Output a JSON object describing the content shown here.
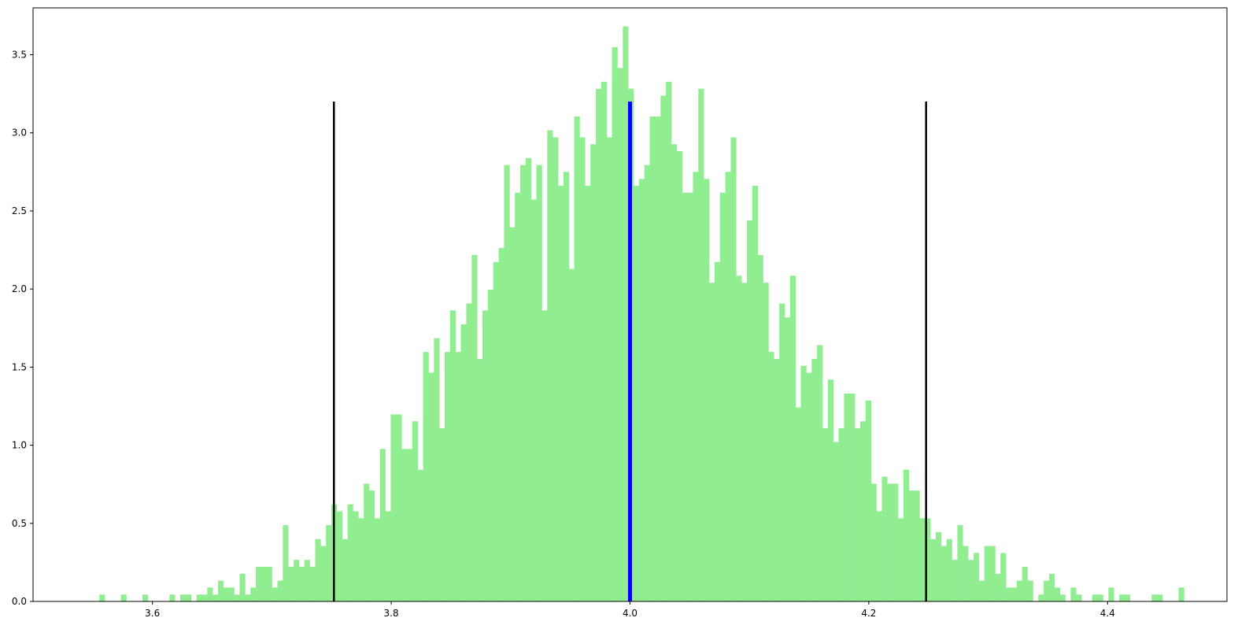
{
  "chart_data": {
    "type": "bar",
    "subtype": "histogram",
    "title": "",
    "xlabel": "",
    "ylabel": "",
    "xlim": [
      3.5,
      4.5
    ],
    "ylim": [
      0,
      3.8
    ],
    "grid": false,
    "xticks": [
      3.6,
      3.8,
      4.0,
      4.2,
      4.4
    ],
    "xtick_labels": [
      "3.6",
      "3.8",
      "4.0",
      "4.2",
      "4.4"
    ],
    "yticks": [
      0,
      0.5,
      1.0,
      1.5,
      2.0,
      2.5,
      3.0,
      3.5
    ],
    "ytick_labels": [
      "0.0",
      "0.5",
      "1.0",
      "1.5",
      "2.0",
      "2.5",
      "3.0",
      "3.5"
    ],
    "bar_color": "#90ee90",
    "bin_width": 0.00452,
    "bins_start": 3.5555,
    "values": [
      0.044,
      0,
      0,
      0,
      0.044,
      0,
      0,
      0,
      0.044,
      0,
      0,
      0,
      0,
      0.044,
      0,
      0.044,
      0.044,
      0,
      0.044,
      0.044,
      0.089,
      0.044,
      0.133,
      0.089,
      0.089,
      0.044,
      0.177,
      0.044,
      0.089,
      0.222,
      0.222,
      0.222,
      0.089,
      0.133,
      0.488,
      0.222,
      0.266,
      0.222,
      0.266,
      0.222,
      0.399,
      0.355,
      0.488,
      0.621,
      0.577,
      0.399,
      0.621,
      0.577,
      0.532,
      0.754,
      0.71,
      0.532,
      0.976,
      0.577,
      1.197,
      1.197,
      0.976,
      0.976,
      1.153,
      0.843,
      1.597,
      1.464,
      1.685,
      1.109,
      1.597,
      1.863,
      1.597,
      1.774,
      1.907,
      2.218,
      1.552,
      1.863,
      1.996,
      2.173,
      2.262,
      2.794,
      2.395,
      2.617,
      2.794,
      2.838,
      2.573,
      2.794,
      1.863,
      3.016,
      2.971,
      2.661,
      2.75,
      2.129,
      3.105,
      2.971,
      2.661,
      2.927,
      3.282,
      3.327,
      2.971,
      3.548,
      3.415,
      3.681,
      3.282,
      2.661,
      2.705,
      2.794,
      3.105,
      3.105,
      3.238,
      3.327,
      2.927,
      2.883,
      2.617,
      2.617,
      2.75,
      3.282,
      2.705,
      2.04,
      2.173,
      2.617,
      2.75,
      2.971,
      2.085,
      2.04,
      2.44,
      2.661,
      2.218,
      2.04,
      1.597,
      1.552,
      1.907,
      1.818,
      2.085,
      1.242,
      1.508,
      1.464,
      1.552,
      1.641,
      1.109,
      1.42,
      1.02,
      1.109,
      1.331,
      1.331,
      1.109,
      1.153,
      1.286,
      0.754,
      0.577,
      0.799,
      0.754,
      0.754,
      0.532,
      0.843,
      0.71,
      0.71,
      0.532,
      0.532,
      0.399,
      0.444,
      0.355,
      0.399,
      0.266,
      0.488,
      0.355,
      0.266,
      0.31,
      0.133,
      0.355,
      0.355,
      0.177,
      0.31,
      0.089,
      0.089,
      0.133,
      0.222,
      0.133,
      0,
      0.044,
      0.133,
      0.177,
      0.089,
      0.044,
      0,
      0.089,
      0.044,
      0,
      0,
      0.044,
      0.044,
      0,
      0.089,
      0,
      0.044,
      0.044,
      0,
      0,
      0,
      0,
      0.044,
      0.044,
      0,
      0,
      0,
      0.089
    ],
    "vlines": [
      {
        "x": 3.752,
        "ymin": 0,
        "ymax": 3.2,
        "color": "#000000"
      },
      {
        "x": 4.0,
        "ymin": 0,
        "ymax": 3.2,
        "color": "#0000ff"
      },
      {
        "x": 4.248,
        "ymin": 0,
        "ymax": 3.2,
        "color": "#000000"
      }
    ]
  }
}
